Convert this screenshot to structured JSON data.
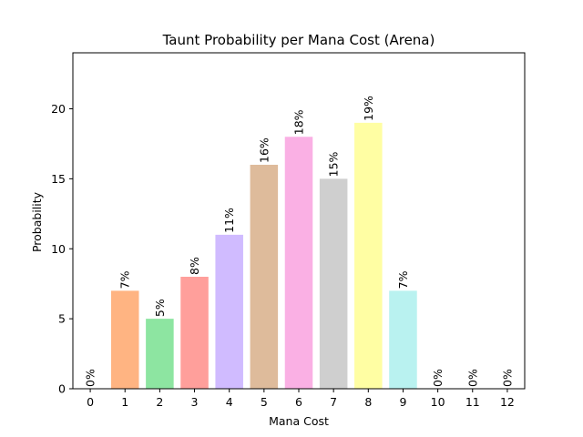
{
  "chart_data": {
    "type": "bar",
    "title": "Taunt Probability per Mana Cost (Arena)",
    "xlabel": "Mana Cost",
    "ylabel": "Probability",
    "categories": [
      "0",
      "1",
      "2",
      "3",
      "4",
      "5",
      "6",
      "7",
      "8",
      "9",
      "10",
      "11",
      "12"
    ],
    "values": [
      0,
      7,
      5,
      8,
      11,
      16,
      18,
      15,
      19,
      7,
      0,
      0,
      0
    ],
    "data_labels": [
      "0%",
      "7%",
      "5%",
      "8%",
      "11%",
      "16%",
      "18%",
      "15%",
      "19%",
      "7%",
      "0%",
      "0%",
      "0%"
    ],
    "colors": [
      "#a1c9f4",
      "#ffb482",
      "#8de5a1",
      "#ff9f9b",
      "#d0bbff",
      "#debb9b",
      "#fab0e4",
      "#cfcfcf",
      "#fffea3",
      "#b9f2f0",
      "#a1c9f4",
      "#ffb482",
      "#8de5a1"
    ],
    "ylim": [
      0,
      24
    ],
    "yticks": [
      0,
      5,
      10,
      15,
      20
    ],
    "grid": false,
    "legend": "none"
  }
}
